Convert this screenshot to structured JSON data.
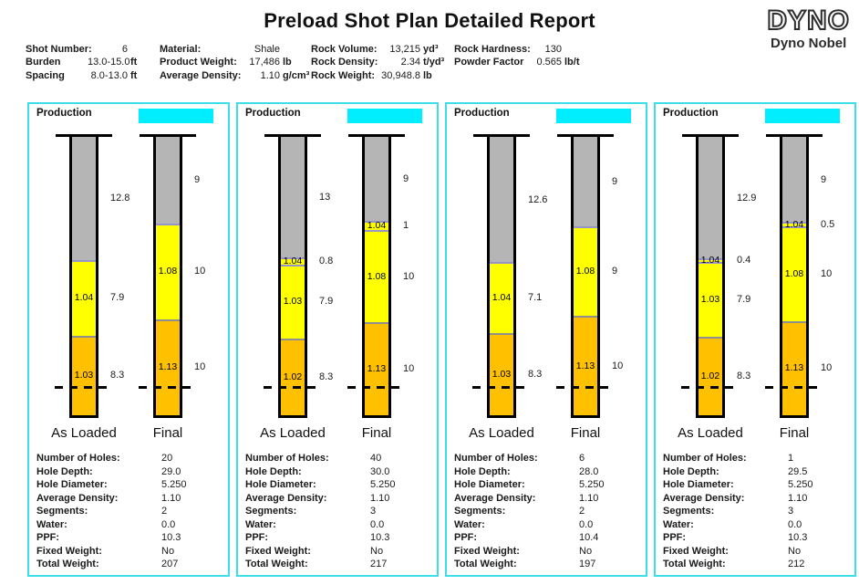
{
  "title": "Preload Shot Plan Detailed Report",
  "logo": {
    "brand": "DYNO",
    "subtitle": "Dyno Nobel"
  },
  "header": {
    "columns": [
      {
        "fields": [
          {
            "label": "Shot Number:",
            "value": "6",
            "unit": ""
          },
          {
            "label": "Burden",
            "value": "13.0-15.0",
            "unit": "ft"
          },
          {
            "label": "Spacing",
            "value": "8.0-13.0",
            "unit": "ft"
          }
        ]
      },
      {
        "fields": [
          {
            "label": "Material:",
            "value": "Shale",
            "unit": ""
          },
          {
            "label": "Product Weight:",
            "value": "17,486",
            "unit": "lb"
          },
          {
            "label": "Average Density:",
            "value": "1.10",
            "unit": "g/cm³"
          }
        ]
      },
      {
        "fields": [
          {
            "label": "Rock Volume:",
            "value": "13,215",
            "unit": "yd³"
          },
          {
            "label": "Rock Density:",
            "value": "2.34",
            "unit": "t/yd³"
          },
          {
            "label": "Rock Weight:",
            "value": "30,948.8",
            "unit": "lb"
          }
        ]
      },
      {
        "fields": [
          {
            "label": "Rock Hardness:",
            "value": "130",
            "unit": ""
          },
          {
            "label": "Powder Factor",
            "value": "0.565",
            "unit": "lb/t"
          }
        ]
      }
    ]
  },
  "colors": {
    "panel_border": "#3cdfe9",
    "highlight_box": "#00eeff",
    "stem": "#b5b5b5",
    "yellow": "#ffff00",
    "orange": "#ffc000",
    "purple_divider": "#9595c8",
    "gray_divider": "#8f8f8f",
    "hole_border": "#000000"
  },
  "details_labels": [
    "Number of Holes:",
    "Hole Depth:",
    "Hole Diameter:",
    "Average Density:",
    "Segments:",
    "Water:",
    "PPF:",
    "Fixed Weight:",
    "Total Weight:"
  ],
  "panels": [
    {
      "title": "Production",
      "bores": [
        {
          "label": "As Loaded",
          "segments": [
            {
              "type": "stem",
              "length": "12.8"
            },
            {
              "type": "explosive",
              "color": "yellow",
              "density": "1.04",
              "length": "7.9",
              "divider": "purple"
            },
            {
              "type": "explosive",
              "color": "orange",
              "density": "1.03",
              "length": "8.3",
              "divider": "gray"
            }
          ]
        },
        {
          "label": "Final",
          "segments": [
            {
              "type": "stem",
              "length": "9"
            },
            {
              "type": "explosive",
              "color": "yellow",
              "density": "1.08",
              "length": "10",
              "divider": "purple"
            },
            {
              "type": "explosive",
              "color": "orange",
              "density": "1.13",
              "length": "10",
              "divider": "gray"
            }
          ]
        }
      ],
      "details": [
        "20",
        "29.0",
        "5.250",
        "1.10",
        "2",
        "0.0",
        "10.3",
        "No",
        "207"
      ]
    },
    {
      "title": "Production",
      "bores": [
        {
          "label": "As Loaded",
          "segments": [
            {
              "type": "stem",
              "length": "13"
            },
            {
              "type": "explosive",
              "color": "yellow",
              "density": "1.04",
              "length": "0.8",
              "divider": "purple"
            },
            {
              "type": "explosive",
              "color": "yellow",
              "density": "1.03",
              "length": "7.9",
              "divider": "purple"
            },
            {
              "type": "explosive",
              "color": "orange",
              "density": "1.02",
              "length": "8.3",
              "divider": "gray"
            }
          ]
        },
        {
          "label": "Final",
          "segments": [
            {
              "type": "stem",
              "length": "9"
            },
            {
              "type": "explosive",
              "color": "yellow",
              "density": "1.04",
              "length": "1",
              "divider": "purple"
            },
            {
              "type": "explosive",
              "color": "yellow",
              "density": "1.08",
              "length": "10",
              "divider": "purple"
            },
            {
              "type": "explosive",
              "color": "orange",
              "density": "1.13",
              "length": "10",
              "divider": "gray"
            }
          ]
        }
      ],
      "details": [
        "40",
        "30.0",
        "5.250",
        "1.10",
        "3",
        "0.0",
        "10.3",
        "No",
        "217"
      ]
    },
    {
      "title": "Production",
      "bores": [
        {
          "label": "As Loaded",
          "segments": [
            {
              "type": "stem",
              "length": "12.6"
            },
            {
              "type": "explosive",
              "color": "yellow",
              "density": "1.04",
              "length": "7.1",
              "divider": "purple"
            },
            {
              "type": "explosive",
              "color": "orange",
              "density": "1.03",
              "length": "8.3",
              "divider": "gray"
            }
          ]
        },
        {
          "label": "Final",
          "segments": [
            {
              "type": "stem",
              "length": "9"
            },
            {
              "type": "explosive",
              "color": "yellow",
              "density": "1.08",
              "length": "9",
              "divider": "purple"
            },
            {
              "type": "explosive",
              "color": "orange",
              "density": "1.13",
              "length": "10",
              "divider": "gray"
            }
          ]
        }
      ],
      "details": [
        "6",
        "28.0",
        "5.250",
        "1.10",
        "2",
        "0.0",
        "10.4",
        "No",
        "197"
      ]
    },
    {
      "title": "Production",
      "bores": [
        {
          "label": "As Loaded",
          "segments": [
            {
              "type": "stem",
              "length": "12.9"
            },
            {
              "type": "explosive",
              "color": "yellow",
              "density": "1.04",
              "length": "0.4",
              "divider": "purple"
            },
            {
              "type": "explosive",
              "color": "yellow",
              "density": "1.03",
              "length": "7.9",
              "divider": "purple"
            },
            {
              "type": "explosive",
              "color": "orange",
              "density": "1.02",
              "length": "8.3",
              "divider": "gray"
            }
          ]
        },
        {
          "label": "Final",
          "segments": [
            {
              "type": "stem",
              "length": "9"
            },
            {
              "type": "explosive",
              "color": "yellow",
              "density": "1.04",
              "length": "0.5",
              "divider": "purple"
            },
            {
              "type": "explosive",
              "color": "yellow",
              "density": "1.08",
              "length": "10",
              "divider": "purple"
            },
            {
              "type": "explosive",
              "color": "orange",
              "density": "1.13",
              "length": "10",
              "divider": "gray"
            }
          ]
        }
      ],
      "details": [
        "1",
        "29.5",
        "5.250",
        "1.10",
        "3",
        "0.0",
        "10.3",
        "No",
        "212"
      ]
    }
  ]
}
